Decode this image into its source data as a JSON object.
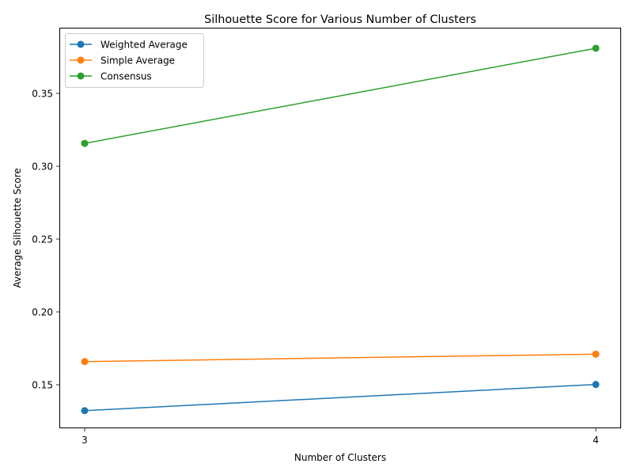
{
  "chart_data": {
    "type": "line",
    "title": "Silhouette Score for Various Number of Clusters",
    "xlabel": "Number of Clusters",
    "ylabel": "Average Silhouette Score",
    "x": [
      3,
      4
    ],
    "x_tick_labels": [
      "3",
      "4"
    ],
    "y_ticks": [
      0.15,
      0.2,
      0.25,
      0.3,
      0.35
    ],
    "y_tick_labels": [
      "0.15",
      "0.20",
      "0.25",
      "0.30",
      "0.35"
    ],
    "ylim": [
      0.1225,
      0.3895
    ],
    "grid": false,
    "legend_position": "upper left",
    "series": [
      {
        "name": "Weighted Average",
        "color": "#1f77b4",
        "marker": "circle",
        "values": [
          0.1322,
          0.1502
        ]
      },
      {
        "name": "Simple Average",
        "color": "#ff7f0e",
        "marker": "circle",
        "values": [
          0.1659,
          0.171
        ]
      },
      {
        "name": "Consensus",
        "color": "#2ca02c",
        "marker": "circle",
        "values": [
          0.3157,
          0.381
        ]
      }
    ]
  }
}
